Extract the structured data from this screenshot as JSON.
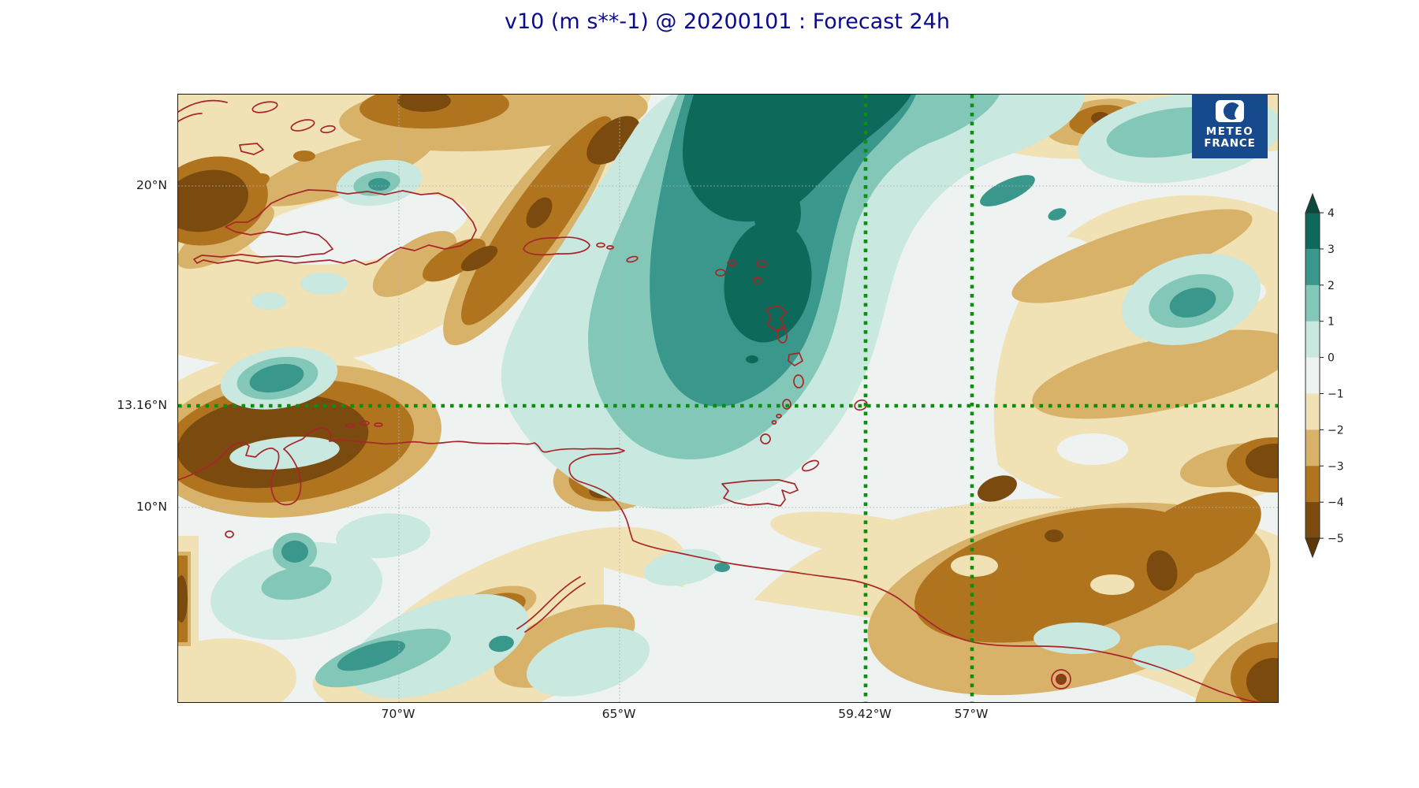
{
  "title": "v10 (m s**-1) @ 20200101 : Forecast 24h",
  "colors": {
    "title": "#0b0b8f",
    "tick_labels": "#1c1c1c",
    "coastline": "#a8262a",
    "gridline": "#b0b0b0",
    "crosshair_green": "#0c8e0e",
    "logo_bg": "#164a8c",
    "axes_border": "#1a1a1a"
  },
  "palette": {
    "m5": "#7b4a0e",
    "m4": "#b0741e",
    "m3": "#d9b269",
    "m2": "#f0e2b4",
    "m1": "#eef2f1",
    "p0": "#c9e8df",
    "p1": "#82c7b7",
    "p2": "#39978c",
    "p3": "#0d6a5b"
  },
  "axes": {
    "x_tick_labels": [
      "70°W",
      "65°W",
      "59.42°W",
      "57°W"
    ],
    "y_tick_labels": [
      "20°N",
      "13.16°N",
      "10°N"
    ]
  },
  "crosshair": {
    "lat_label": "13.16°N",
    "lon_label_1": "59.42°W",
    "lon_label_2": "57°W"
  },
  "colorbar": {
    "tick_labels": [
      "4",
      "3",
      "2",
      "1",
      "0",
      "−1",
      "−2",
      "−3",
      "−4",
      "−5"
    ],
    "segment_colors_top_to_bottom": [
      "#0d6a5b",
      "#39978c",
      "#82c7b7",
      "#c9e8df",
      "#eef2f1",
      "#f0e2b4",
      "#d9b269",
      "#b0741e",
      "#7b4a0e"
    ],
    "over_arrow_color": "#084a3d",
    "under_arrow_color": "#603605",
    "outline_color": "#333333"
  },
  "logo": {
    "line1": "METEO",
    "line2": "FRANCE"
  },
  "chart_data": {
    "type": "heatmap",
    "subtype": "filled-contour map (BrBG brown–teal diverging colormap)",
    "title": "v10 (m s**-1) @ 20200101 : Forecast 24h",
    "variable": "v10 (10 m meridional wind, m s**-1)",
    "valid_date": "20200101",
    "forecast_lead": "24h",
    "levels": [
      -5,
      -4,
      -3,
      -2,
      -1,
      0,
      1,
      2,
      3,
      4
    ],
    "extend": "both",
    "colorbar_ticks": [
      4,
      3,
      2,
      1,
      0,
      -1,
      -2,
      -3,
      -4,
      -5
    ],
    "lat_gridlines_deg_north": [
      20,
      10
    ],
    "lon_gridlines_deg_west": [
      70,
      65
    ],
    "green_crosshair_point": {
      "lat_deg_north": 13.16,
      "lon_deg_west": 59.42
    },
    "second_green_meridian_deg_west": 57,
    "approx_extent": {
      "west_deg": -75,
      "east_deg": -50,
      "south_deg": 4,
      "north_deg": 23
    },
    "grid_on": true,
    "legend_position": "vertical colorbar right",
    "features": [
      "strong positive core (+3 to +4) north-east of the Lesser Antilles around 62-64W / 17-22N",
      "second positive core (+3) over the island arc near 62W / 15-16N",
      "strong negative core (below -5) off Colombia/Venezuela near 73-70W / 11-13N",
      "negative core (-5) west of Hispaniola near 75W / 18-20N",
      "negative band (-3 to -5) from Turks islands toward Puerto Rico along 68-64W / 18-22N",
      "broad negative area (-3 to -5) over the Guianas and adjacent Atlantic east of 59W south of 13N",
      "near-zero to weakly negative field elsewhere with scattered weak positive patches"
    ],
    "coastlines_shown": [
      "Hispaniola",
      "Puerto Rico",
      "Lesser Antilles arc",
      "Barbados",
      "Trinidad and Tobago",
      "northern South America",
      "Bahamas/Turks islands",
      "Cuba fragment"
    ]
  }
}
